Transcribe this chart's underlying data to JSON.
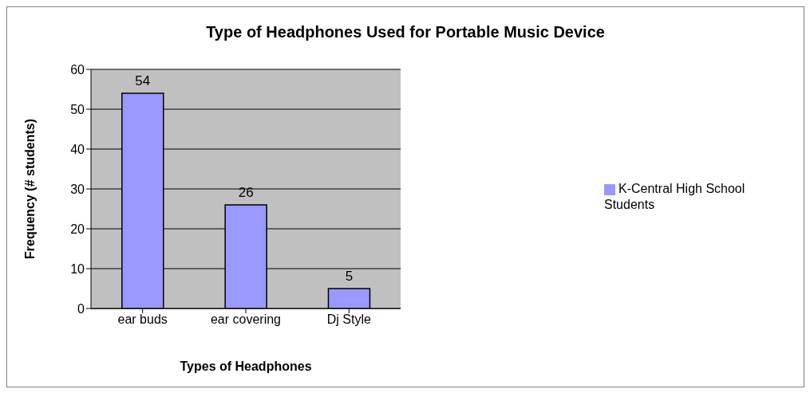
{
  "chart_data": {
    "type": "bar",
    "title": "Type of Headphones Used for Portable Music Device",
    "xlabel": "Types of Headphones",
    "ylabel": "Frequency (# students)",
    "categories": [
      "ear buds",
      "ear covering",
      "Dj Style"
    ],
    "series": [
      {
        "name": "K-Central High School Students",
        "color": "#9999ff",
        "values": [
          54,
          26,
          5
        ]
      }
    ],
    "ylim": [
      0,
      60
    ],
    "yticks": [
      0,
      10,
      20,
      30,
      40,
      50,
      60
    ],
    "grid": "y",
    "legend": "right",
    "data_labels": true
  }
}
